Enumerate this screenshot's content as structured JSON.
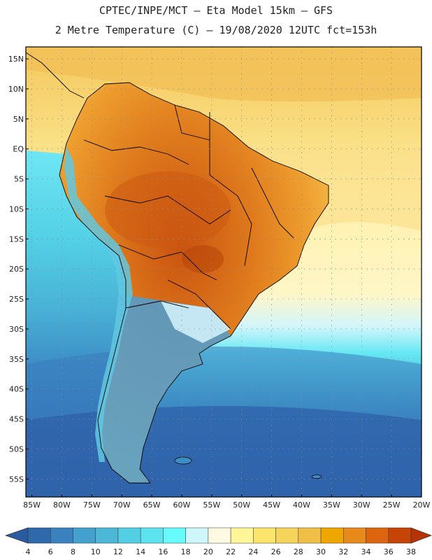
{
  "header": {
    "line1": "CPTEC/INPE/MCT –  Eta Model 15km – GFS",
    "line2": "2 Metre Temperature (C) – 19/08/2020 12UTC fct=153h"
  },
  "map": {
    "lat_labels": [
      "15N",
      "10N",
      "5N",
      "EQ",
      "5S",
      "10S",
      "15S",
      "20S",
      "25S",
      "30S",
      "35S",
      "40S",
      "45S",
      "50S",
      "55S"
    ],
    "lon_labels": [
      "85W",
      "80W",
      "75W",
      "70W",
      "65W",
      "60W",
      "55W",
      "50W",
      "45W",
      "40W",
      "35W",
      "30W",
      "25W",
      "20W"
    ]
  },
  "colorbar": {
    "labels": [
      "4",
      "6",
      "8",
      "10",
      "12",
      "14",
      "16",
      "18",
      "20",
      "22",
      "24",
      "26",
      "28",
      "30",
      "32",
      "34",
      "36",
      "38"
    ],
    "colors": [
      "#2e6aab",
      "#3a82bf",
      "#44a0cc",
      "#4db7d8",
      "#52cfe3",
      "#5ce3ee",
      "#67fbfb",
      "#cff7fb",
      "#fff8e3",
      "#fff69a",
      "#fce56b",
      "#f6d35a",
      "#efbf48",
      "#f0a600",
      "#e88a1b",
      "#dd6510",
      "#c74407"
    ]
  },
  "colors": {
    "ocean_deep": "#2c5aa0",
    "ocean_mid": "#3978bb",
    "land_hot": "#d96c1a",
    "land_warm": "#ec9f2e",
    "border": "#000000"
  }
}
